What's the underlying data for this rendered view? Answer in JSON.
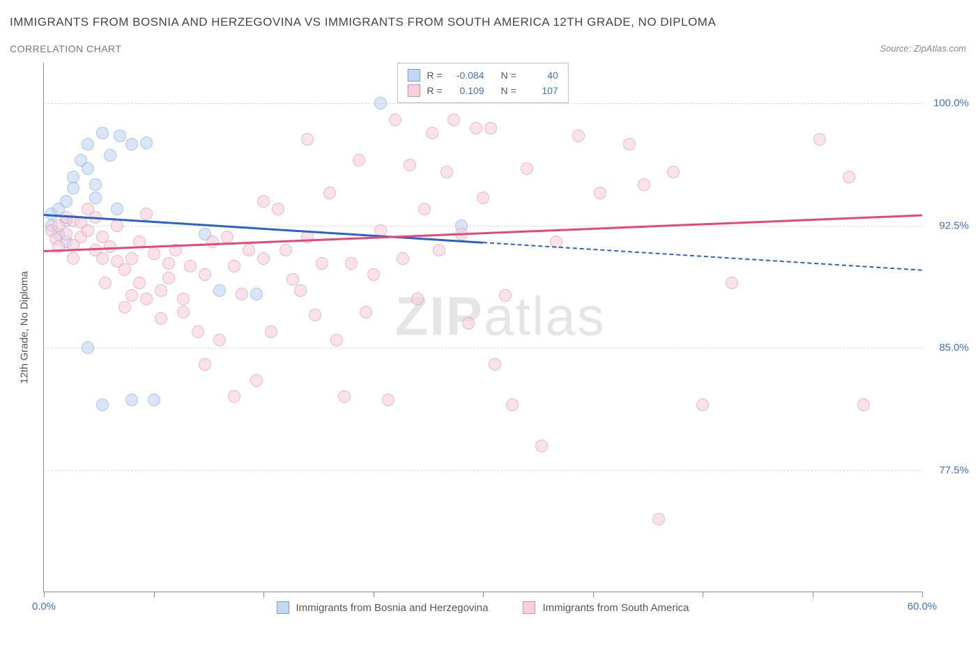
{
  "title": "IMMIGRANTS FROM BOSNIA AND HERZEGOVINA VS IMMIGRANTS FROM SOUTH AMERICA 12TH GRADE, NO DIPLOMA",
  "subtitle": "CORRELATION CHART",
  "source": "Source: ZipAtlas.com",
  "watermark_bold": "ZIP",
  "watermark_light": "atlas",
  "chart": {
    "type": "scatter",
    "y_axis_label": "12th Grade, No Diploma",
    "x_range": [
      0,
      60
    ],
    "y_range": [
      70,
      102.5
    ],
    "y_gridlines": [
      77.5,
      85.0,
      92.5,
      100.0
    ],
    "y_tick_labels": [
      "77.5%",
      "85.0%",
      "92.5%",
      "100.0%"
    ],
    "x_ticks": [
      0,
      7.5,
      15,
      22.5,
      30,
      37.5,
      45,
      52.5,
      60
    ],
    "x_tick_labels": {
      "0": "0.0%",
      "60": "60.0%"
    },
    "grid_color": "#dddddd",
    "axis_color": "#888888",
    "background_color": "#ffffff",
    "series": [
      {
        "name": "Immigrants from Bosnia and Herzegovina",
        "fill_color": "#c3d7f2",
        "stroke_color": "#6f9fe0",
        "line_color": "#2b62c4",
        "r_value": "-0.084",
        "n_value": "40",
        "trend": {
          "x1": 0,
          "y1": 93.2,
          "x2": 30,
          "y2": 91.5,
          "dash_x2": 60,
          "dash_y2": 89.8
        },
        "points": [
          [
            0.5,
            92.5
          ],
          [
            0.5,
            93.2
          ],
          [
            1,
            92.0
          ],
          [
            1,
            93.5
          ],
          [
            1.5,
            94.0
          ],
          [
            1.5,
            91.5
          ],
          [
            1.5,
            92.8
          ],
          [
            2,
            95.5
          ],
          [
            2,
            94.8
          ],
          [
            2.5,
            96.5
          ],
          [
            3,
            97.5
          ],
          [
            3,
            96.0
          ],
          [
            3.5,
            95.0
          ],
          [
            3.5,
            94.2
          ],
          [
            4,
            98.2
          ],
          [
            4.5,
            96.8
          ],
          [
            5,
            93.5
          ],
          [
            5.2,
            98.0
          ],
          [
            6,
            97.5
          ],
          [
            7,
            97.6
          ],
          [
            3,
            85.0
          ],
          [
            4,
            81.5
          ],
          [
            6,
            81.8
          ],
          [
            7.5,
            81.8
          ],
          [
            11,
            92.0
          ],
          [
            12,
            88.5
          ],
          [
            14.5,
            88.3
          ],
          [
            23.0,
            100.0
          ],
          [
            28.5,
            92.5
          ]
        ]
      },
      {
        "name": "Immigrants from South America",
        "fill_color": "#f6d0db",
        "stroke_color": "#e089a3",
        "line_color": "#e24878",
        "r_value": "0.109",
        "n_value": "107",
        "trend": {
          "x1": 0,
          "y1": 91.0,
          "x2": 60,
          "y2": 93.2
        },
        "points": [
          [
            0.5,
            92.2
          ],
          [
            0.8,
            91.7
          ],
          [
            1,
            92.5
          ],
          [
            1,
            91.2
          ],
          [
            1.5,
            93.0
          ],
          [
            1.5,
            92.0
          ],
          [
            2,
            91.3
          ],
          [
            2,
            92.8
          ],
          [
            2,
            90.5
          ],
          [
            2.5,
            92.7
          ],
          [
            2.5,
            91.8
          ],
          [
            3,
            92.2
          ],
          [
            3,
            93.5
          ],
          [
            3.5,
            91.0
          ],
          [
            3.5,
            93.0
          ],
          [
            4,
            91.8
          ],
          [
            4,
            90.5
          ],
          [
            4.2,
            89.0
          ],
          [
            4.5,
            91.2
          ],
          [
            5,
            92.5
          ],
          [
            5,
            90.3
          ],
          [
            5.5,
            89.8
          ],
          [
            5.5,
            87.5
          ],
          [
            6,
            90.5
          ],
          [
            6,
            88.2
          ],
          [
            6.5,
            91.5
          ],
          [
            6.5,
            89.0
          ],
          [
            7,
            93.2
          ],
          [
            7,
            88.0
          ],
          [
            7.5,
            90.8
          ],
          [
            8,
            88.5
          ],
          [
            8,
            86.8
          ],
          [
            8.5,
            90.2
          ],
          [
            8.5,
            89.3
          ],
          [
            9,
            91.0
          ],
          [
            9.5,
            88.0
          ],
          [
            9.5,
            87.2
          ],
          [
            10,
            90.0
          ],
          [
            10.5,
            86.0
          ],
          [
            11,
            89.5
          ],
          [
            11,
            84.0
          ],
          [
            11.5,
            91.5
          ],
          [
            12,
            85.5
          ],
          [
            12.5,
            91.8
          ],
          [
            13,
            90.0
          ],
          [
            13,
            82.0
          ],
          [
            13.5,
            88.3
          ],
          [
            14,
            91.0
          ],
          [
            14.5,
            83.0
          ],
          [
            15,
            90.5
          ],
          [
            15,
            94.0
          ],
          [
            15.5,
            86.0
          ],
          [
            16,
            93.5
          ],
          [
            16.5,
            91.0
          ],
          [
            17,
            89.2
          ],
          [
            17.5,
            88.5
          ],
          [
            18,
            91.8
          ],
          [
            18,
            97.8
          ],
          [
            18.5,
            87.0
          ],
          [
            19,
            90.2
          ],
          [
            19.5,
            94.5
          ],
          [
            20,
            85.5
          ],
          [
            20.5,
            82.0
          ],
          [
            21,
            90.2
          ],
          [
            21.5,
            96.5
          ],
          [
            22,
            87.2
          ],
          [
            22.5,
            89.5
          ],
          [
            23,
            92.2
          ],
          [
            23.5,
            81.8
          ],
          [
            24,
            99.0
          ],
          [
            24.5,
            90.5
          ],
          [
            25,
            96.2
          ],
          [
            25.5,
            88.0
          ],
          [
            26,
            93.5
          ],
          [
            26.5,
            98.2
          ],
          [
            27,
            91.0
          ],
          [
            27.5,
            95.8
          ],
          [
            28,
            99.0
          ],
          [
            28.5,
            92.0
          ],
          [
            29,
            86.5
          ],
          [
            29.5,
            98.5
          ],
          [
            30,
            94.2
          ],
          [
            30.5,
            98.5
          ],
          [
            30.8,
            84.0
          ],
          [
            31.5,
            88.2
          ],
          [
            32,
            81.5
          ],
          [
            33,
            96.0
          ],
          [
            34,
            79.0
          ],
          [
            35,
            91.5
          ],
          [
            36.5,
            98.0
          ],
          [
            38,
            94.5
          ],
          [
            40,
            97.5
          ],
          [
            41,
            95.0
          ],
          [
            42,
            74.5
          ],
          [
            43,
            95.8
          ],
          [
            45,
            81.5
          ],
          [
            47,
            89.0
          ],
          [
            53,
            97.8
          ],
          [
            55,
            95.5
          ],
          [
            56,
            81.5
          ]
        ]
      }
    ],
    "corr_legend": {
      "r_label": "R =",
      "n_label": "N ="
    },
    "bottom_legend": [
      {
        "swatch_fill": "#c3d7f2",
        "swatch_stroke": "#6f9fe0",
        "label": "Immigrants from Bosnia and Herzegovina"
      },
      {
        "swatch_fill": "#f6d0db",
        "swatch_stroke": "#e089a3",
        "label": "Immigrants from South America"
      }
    ]
  }
}
